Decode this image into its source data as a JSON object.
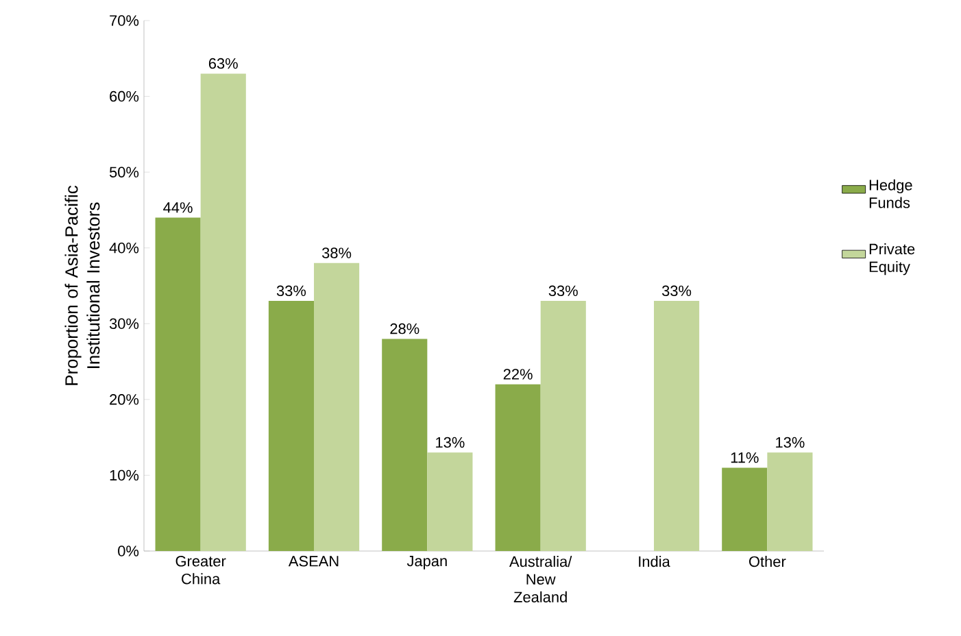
{
  "chart_data": {
    "type": "bar",
    "ylabel": "Proportion of Asia-Pacific Institutional Investors",
    "categories": [
      "Greater China",
      "ASEAN",
      "Japan",
      "Australia/ New Zealand",
      "India",
      "Other"
    ],
    "series": [
      {
        "name": "Hedge Funds",
        "color": "#8aab4a",
        "values": [
          44,
          33,
          28,
          22,
          null,
          11
        ],
        "value_labels": [
          "44%",
          "33%",
          "28%",
          "22%",
          null,
          "11%"
        ]
      },
      {
        "name": "Private Equity",
        "color": "#c3d69b",
        "values": [
          63,
          38,
          13,
          33,
          33,
          13
        ],
        "value_labels": [
          "63%",
          "38%",
          "13%",
          "33%",
          "33%",
          "13%"
        ]
      }
    ],
    "ylim": [
      0,
      70
    ],
    "yticks": [
      {
        "value": 0,
        "label": "0%"
      },
      {
        "value": 10,
        "label": "10%"
      },
      {
        "value": 20,
        "label": "20%"
      },
      {
        "value": 30,
        "label": "30%"
      },
      {
        "value": 40,
        "label": "40%"
      },
      {
        "value": 50,
        "label": "50%"
      },
      {
        "value": 60,
        "label": "60%"
      },
      {
        "value": 70,
        "label": "70%"
      }
    ],
    "grid": false,
    "legend": "right"
  }
}
